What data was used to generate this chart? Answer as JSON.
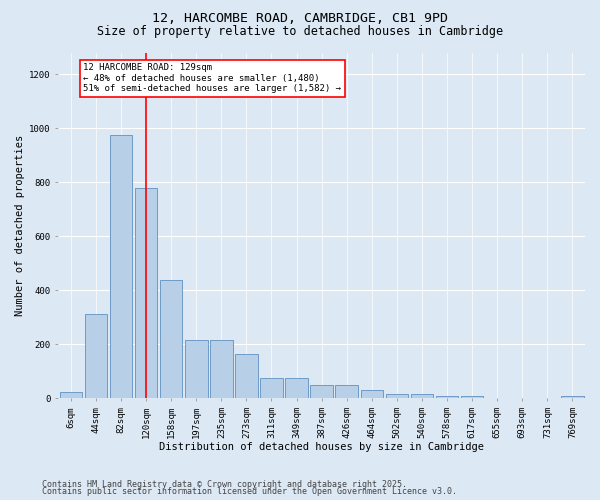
{
  "title_line1": "12, HARCOMBE ROAD, CAMBRIDGE, CB1 9PD",
  "title_line2": "Size of property relative to detached houses in Cambridge",
  "xlabel": "Distribution of detached houses by size in Cambridge",
  "ylabel": "Number of detached properties",
  "categories": [
    "6sqm",
    "44sqm",
    "82sqm",
    "120sqm",
    "158sqm",
    "197sqm",
    "235sqm",
    "273sqm",
    "311sqm",
    "349sqm",
    "387sqm",
    "426sqm",
    "464sqm",
    "502sqm",
    "540sqm",
    "578sqm",
    "617sqm",
    "655sqm",
    "693sqm",
    "731sqm",
    "769sqm"
  ],
  "values": [
    22,
    312,
    975,
    780,
    438,
    215,
    215,
    165,
    75,
    75,
    48,
    48,
    30,
    18,
    18,
    10,
    10,
    0,
    0,
    0,
    10
  ],
  "bar_color": "#b8cfe8",
  "bar_edge_color": "#6090c0",
  "vline_index": 3,
  "vline_color": "red",
  "annotation_text": "12 HARCOMBE ROAD: 129sqm\n← 48% of detached houses are smaller (1,480)\n51% of semi-detached houses are larger (1,582) →",
  "annotation_box_facecolor": "white",
  "annotation_box_edgecolor": "red",
  "ylim": [
    0,
    1280
  ],
  "yticks": [
    0,
    200,
    400,
    600,
    800,
    1000,
    1200
  ],
  "bg_color": "#dce8f4",
  "plot_bg_color": "#dce8f4",
  "footer_line1": "Contains HM Land Registry data © Crown copyright and database right 2025.",
  "footer_line2": "Contains public sector information licensed under the Open Government Licence v3.0.",
  "title_fontsize": 9.5,
  "subtitle_fontsize": 8.5,
  "tick_fontsize": 6.5,
  "axis_label_fontsize": 7.5,
  "annotation_fontsize": 6.5,
  "footer_fontsize": 6
}
